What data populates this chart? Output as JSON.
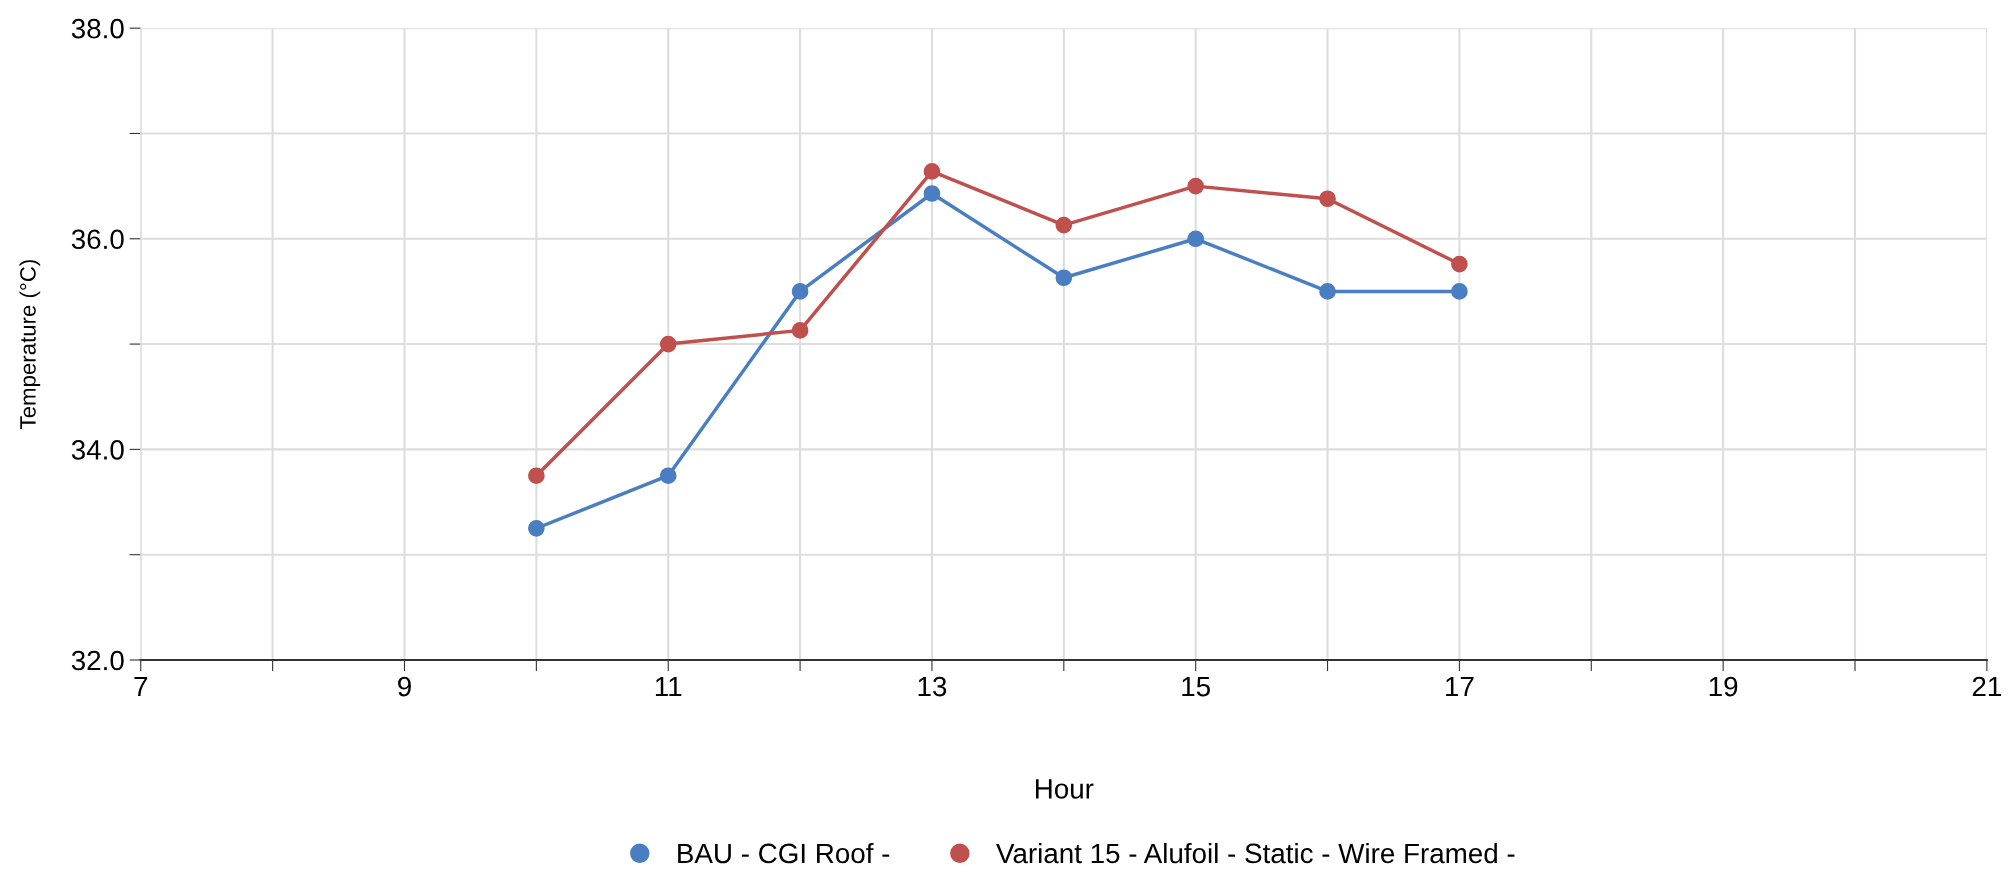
{
  "chart_data": {
    "type": "line",
    "xlabel": "Hour",
    "ylabel": "Temperature (°C)",
    "x": [
      10,
      11,
      12,
      13,
      14,
      15,
      16,
      17
    ],
    "series": [
      {
        "name": "BAU - CGI Roof -",
        "color": "#4a7ec2",
        "values": [
          33.25,
          33.75,
          35.5,
          36.43,
          35.63,
          36.0,
          35.5,
          35.5
        ]
      },
      {
        "name": "Variant 15 - Alufoil - Static - Wire Framed -",
        "color": "#c0504d",
        "values": [
          33.75,
          35.0,
          35.13,
          36.64,
          36.13,
          36.5,
          36.38,
          35.76
        ]
      }
    ],
    "xlim": [
      7,
      21
    ],
    "xticks": [
      7,
      {
        "value": 8,
        "label": null
      },
      9,
      {
        "value": 10,
        "label": null
      },
      11,
      {
        "value": 12,
        "label": null
      },
      13,
      {
        "value": 14,
        "label": null
      },
      15,
      {
        "value": 16,
        "label": null
      },
      17,
      {
        "value": 18,
        "label": null
      },
      19,
      {
        "value": 20,
        "label": null
      },
      21
    ],
    "ylim": [
      32,
      38
    ],
    "yticks": [
      {
        "value": 32,
        "label": "32.0"
      },
      {
        "value": 33,
        "label": null
      },
      {
        "value": 34,
        "label": "34.0"
      },
      {
        "value": 35,
        "label": null
      },
      {
        "value": 36,
        "label": "36.0"
      },
      {
        "value": 37,
        "label": null
      },
      {
        "value": 38,
        "label": "38.0"
      }
    ],
    "grid": true,
    "legend": "bottom",
    "marker": "circle",
    "line_style": "solid"
  }
}
